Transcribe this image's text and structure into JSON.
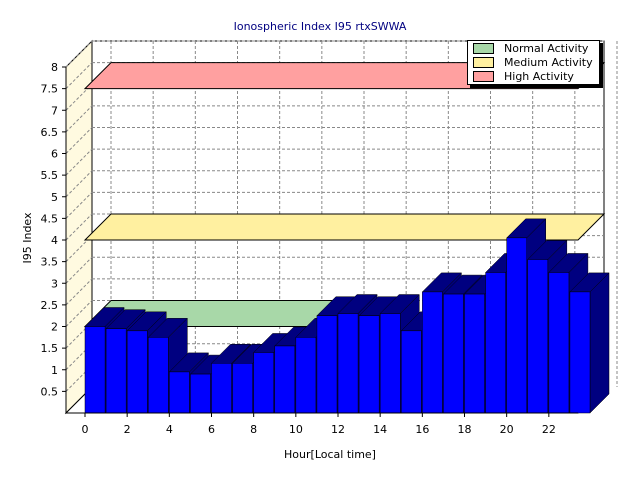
{
  "chart_data": {
    "type": "bar",
    "title": "Ionospheric Index I95 rtxSWWA",
    "xlabel": "Hour[Local time]",
    "ylabel": "I95 Index",
    "ylim": [
      0,
      8
    ],
    "y_ticks": [
      "0.5",
      "1",
      "1.5",
      "2",
      "2.5",
      "3",
      "3.5",
      "4",
      "4.5",
      "5",
      "5.5",
      "6",
      "6.5",
      "7",
      "7.5",
      "8"
    ],
    "x_ticks": [
      "0",
      "2",
      "4",
      "6",
      "8",
      "10",
      "12",
      "14",
      "16",
      "18",
      "20",
      "22"
    ],
    "categories": [
      "0",
      "1",
      "2",
      "3",
      "4",
      "5",
      "6",
      "7",
      "8",
      "9",
      "10",
      "11",
      "12",
      "13",
      "14",
      "15",
      "16",
      "17",
      "18",
      "19",
      "20",
      "21",
      "22",
      "23"
    ],
    "series": [
      {
        "values": [
          2.0,
          1.95,
          1.9,
          1.75,
          0.95,
          0.9,
          1.15,
          1.15,
          1.4,
          1.55,
          1.75,
          2.25,
          2.3,
          2.25,
          2.3,
          1.9,
          2.8,
          2.75,
          2.75,
          3.25,
          4.05,
          3.55,
          3.25,
          2.8
        ],
        "color": "#0000ff"
      }
    ],
    "activity_bands": [
      {
        "name": "Normal Activity",
        "range": [
          2,
          2.5
        ],
        "span": "partial",
        "color": "#a8d8a8"
      },
      {
        "name": "Medium Activity",
        "range": [
          4,
          4.5
        ],
        "span": "full",
        "color": "#fff0a0"
      },
      {
        "name": "High Activity",
        "range": [
          7.5,
          8
        ],
        "span": "full",
        "color": "#ffa0a0"
      }
    ],
    "grid": true,
    "legend_position": "top-right"
  },
  "legend": {
    "items": [
      {
        "label": "Normal Activity",
        "color": "#a8d8a8"
      },
      {
        "label": "Medium Activity",
        "color": "#fff0a0"
      },
      {
        "label": "High Activity",
        "color": "#ffa0a0"
      }
    ]
  },
  "colors": {
    "bar_front": "#0000ff",
    "bar_side": "#000080",
    "wall": "#fffae0",
    "title": "#000080"
  }
}
